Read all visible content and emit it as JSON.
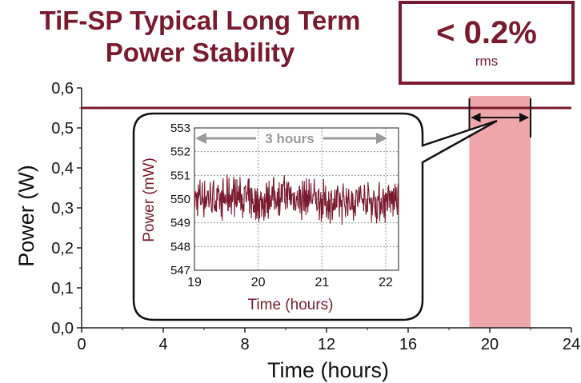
{
  "title": {
    "line1": "TiF-SP Typical Long Term",
    "line2": "Power Stability"
  },
  "rms_box": {
    "value": "< 0.2%",
    "unit": "rms"
  },
  "colors": {
    "title": "#7a1a2e",
    "series": "#7a1a2e",
    "highlight": "#e8888e",
    "arrow": "#9a9a9a"
  },
  "chart_data": [
    {
      "type": "line",
      "xlabel": "Time (hours)",
      "ylabel": "Power (W)",
      "xlim": [
        0,
        24
      ],
      "ylim": [
        0.0,
        0.6
      ],
      "x_ticks": [
        "0",
        "4",
        "8",
        "12",
        "16",
        "20",
        "24"
      ],
      "y_ticks": [
        "0,0",
        "0,1",
        "0,2",
        "0,3",
        "0,4",
        "0,5",
        "0,6"
      ],
      "series": [
        {
          "x": [
            0,
            24
          ],
          "y": [
            0.55,
            0.55
          ]
        }
      ],
      "highlight_range": [
        19,
        22
      ],
      "grid": false
    },
    {
      "type": "line",
      "xlabel": "Time (hours)",
      "ylabel": "Power (mW)",
      "xlim": [
        19,
        22.2
      ],
      "ylim": [
        547,
        553
      ],
      "x_ticks": [
        "19",
        "20",
        "21",
        "22"
      ],
      "y_ticks": [
        "547",
        "548",
        "549",
        "550",
        "551",
        "552",
        "553"
      ],
      "annotation": "3 hours",
      "series": [
        {
          "x": [
            19.0,
            19.2,
            19.4,
            19.6,
            19.8,
            20.0,
            20.2,
            20.4,
            20.6,
            20.8,
            21.0,
            21.2,
            21.4,
            21.6,
            21.8,
            22.0,
            22.2
          ],
          "y": [
            550.0,
            550.1,
            549.9,
            550.2,
            550.0,
            549.8,
            550.1,
            550.2,
            550.0,
            550.1,
            549.9,
            549.8,
            549.9,
            550.0,
            549.9,
            549.9,
            550.0
          ]
        }
      ],
      "band": {
        "low": 549.0,
        "high": 551.0
      },
      "grid": true
    }
  ]
}
